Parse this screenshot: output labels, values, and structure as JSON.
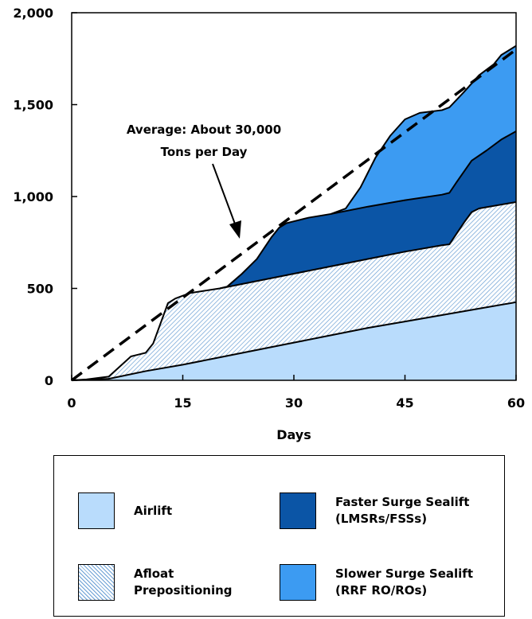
{
  "chart_data": {
    "type": "area",
    "stacked": true,
    "xlabel": "Days",
    "ylabel": "",
    "xlim": [
      0,
      60
    ],
    "ylim": [
      0,
      2000
    ],
    "x_ticks": [
      "0",
      "15",
      "30",
      "45",
      "60"
    ],
    "y_ticks": [
      "0",
      "500",
      "1,000",
      "1,500",
      "2,000"
    ],
    "grid": false,
    "series": [
      {
        "name": "Airlift",
        "color": "#b9dcfc",
        "pattern": "solid",
        "points": [
          [
            0,
            0
          ],
          [
            5,
            8
          ],
          [
            10,
            50
          ],
          [
            15,
            85
          ],
          [
            20,
            125
          ],
          [
            25,
            165
          ],
          [
            30,
            205
          ],
          [
            35,
            245
          ],
          [
            40,
            285
          ],
          [
            45,
            320
          ],
          [
            50,
            355
          ],
          [
            55,
            390
          ],
          [
            60,
            425
          ]
        ]
      },
      {
        "name": "Afloat Prepositioning",
        "color": "#7eb6e6",
        "pattern": "hatched",
        "points": [
          [
            0,
            0
          ],
          [
            2,
            5
          ],
          [
            5,
            20
          ],
          [
            8,
            130
          ],
          [
            9,
            140
          ],
          [
            10,
            150
          ],
          [
            11,
            200
          ],
          [
            12,
            310
          ],
          [
            13,
            420
          ],
          [
            14,
            445
          ],
          [
            15,
            460
          ],
          [
            16,
            475
          ],
          [
            20,
            500
          ],
          [
            25,
            540
          ],
          [
            30,
            580
          ],
          [
            35,
            620
          ],
          [
            40,
            660
          ],
          [
            45,
            700
          ],
          [
            50,
            735
          ],
          [
            51,
            740
          ],
          [
            53,
            860
          ],
          [
            54,
            915
          ],
          [
            55,
            935
          ],
          [
            60,
            970
          ]
        ]
      },
      {
        "name": "Faster Surge Sealift\n(LMSRs/FSSs)",
        "color": "#0b55a6",
        "pattern": "solid",
        "points": [
          [
            20,
            500
          ],
          [
            21,
            510
          ],
          [
            23,
            580
          ],
          [
            25,
            660
          ],
          [
            27,
            780
          ],
          [
            28,
            830
          ],
          [
            29,
            855
          ],
          [
            30,
            865
          ],
          [
            32,
            885
          ],
          [
            35,
            905
          ],
          [
            40,
            945
          ],
          [
            45,
            980
          ],
          [
            50,
            1010
          ],
          [
            51,
            1020
          ],
          [
            52,
            1080
          ],
          [
            54,
            1195
          ],
          [
            56,
            1250
          ],
          [
            58,
            1310
          ],
          [
            60,
            1355
          ]
        ]
      },
      {
        "name": "Slower Surge Sealift\n(RRF RO/ROs)",
        "color": "#3c9bf2",
        "pattern": "solid",
        "points": [
          [
            35,
            905
          ],
          [
            37,
            935
          ],
          [
            39,
            1050
          ],
          [
            41,
            1210
          ],
          [
            43,
            1330
          ],
          [
            45,
            1420
          ],
          [
            47,
            1455
          ],
          [
            50,
            1470
          ],
          [
            51,
            1485
          ],
          [
            53,
            1570
          ],
          [
            55,
            1660
          ],
          [
            57,
            1720
          ],
          [
            58,
            1770
          ],
          [
            60,
            1820
          ]
        ]
      }
    ],
    "trend_line": {
      "label": "Average: About 30,000 Tons per Day",
      "points": [
        [
          0,
          0
        ],
        [
          60,
          1800
        ]
      ]
    },
    "annotation": {
      "line1": "Average: About 30,000",
      "line2": "Tons per Day"
    },
    "legend": {
      "placement": "bottom",
      "items": [
        {
          "label": "Airlift",
          "color": "#b9dcfc",
          "pattern": "solid"
        },
        {
          "label": "Faster Surge Sealift\n(LMSRs/FSSs)",
          "color": "#0b55a6",
          "pattern": "solid"
        },
        {
          "label": "Afloat\nPrepositioning",
          "color": "#ffffff",
          "pattern": "hatched"
        },
        {
          "label": "Slower Surge Sealift\n(RRF RO/ROs)",
          "color": "#3c9bf2",
          "pattern": "solid"
        }
      ]
    }
  }
}
